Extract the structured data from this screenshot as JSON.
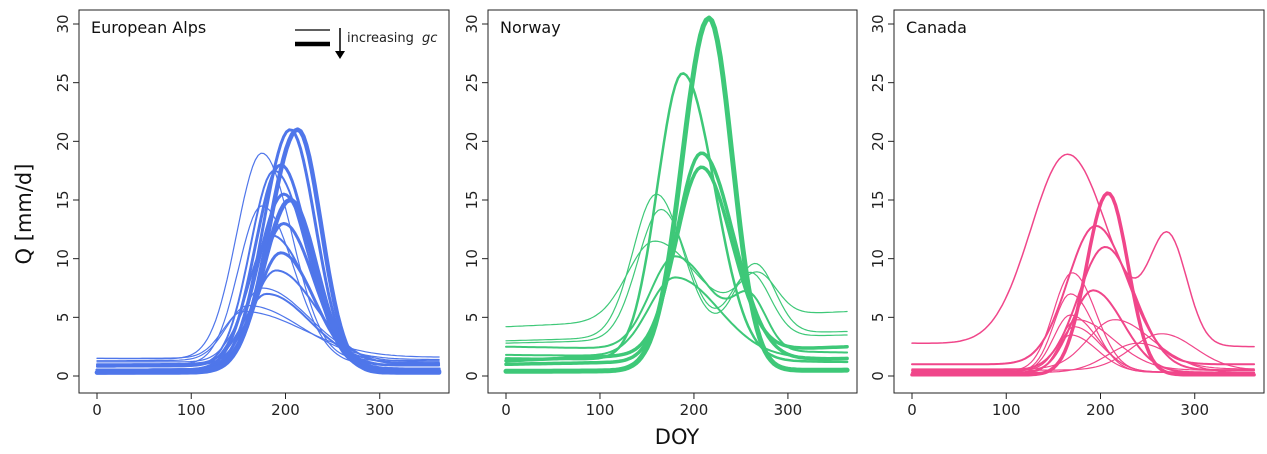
{
  "figure": {
    "ylabel": "Q [mm/d]",
    "xlabel": "DOY"
  },
  "legend": {
    "text": "increasing",
    "symbol": "gc"
  },
  "chart_data": [
    {
      "type": "line",
      "title": "European Alps",
      "color": "#4f76ea",
      "xlim": [
        0,
        365
      ],
      "ylim": [
        0,
        30
      ],
      "xticks": [
        0,
        100,
        200,
        300
      ],
      "yticks": [
        0,
        5,
        10,
        15,
        20,
        25,
        30
      ],
      "series": [
        {
          "width": 1.2,
          "peak": 19.0,
          "day": 175,
          "wr": 38,
          "wf": 45,
          "base0": 1.5,
          "base1": 1.3
        },
        {
          "width": 1.2,
          "peak": 7.5,
          "day": 175,
          "wr": 33,
          "wf": 70,
          "base0": 1.2,
          "base1": 1.2
        },
        {
          "width": 1.2,
          "peak": 6.0,
          "day": 160,
          "wr": 32,
          "wf": 80,
          "base0": 1.3,
          "base1": 1.4
        },
        {
          "width": 1.2,
          "peak": 5.5,
          "day": 155,
          "wr": 30,
          "wf": 90,
          "base0": 1.5,
          "base1": 1.6
        },
        {
          "width": 1.2,
          "peak": 14.5,
          "day": 175,
          "wr": 35,
          "wf": 48,
          "base0": 1.0,
          "base1": 1.0
        },
        {
          "width": 2.0,
          "peak": 17.5,
          "day": 188,
          "wr": 36,
          "wf": 48,
          "base0": 0.8,
          "base1": 0.9
        },
        {
          "width": 2.0,
          "peak": 12.0,
          "day": 185,
          "wr": 35,
          "wf": 55,
          "base0": 0.8,
          "base1": 0.9
        },
        {
          "width": 2.0,
          "peak": 9.0,
          "day": 190,
          "wr": 36,
          "wf": 60,
          "base0": 0.9,
          "base1": 1.0
        },
        {
          "width": 2.0,
          "peak": 7.0,
          "day": 180,
          "wr": 34,
          "wf": 65,
          "base0": 1.0,
          "base1": 1.1
        },
        {
          "width": 3.0,
          "peak": 21.0,
          "day": 205,
          "wr": 40,
          "wf": 38,
          "base0": 0.5,
          "base1": 0.5
        },
        {
          "width": 3.0,
          "peak": 18.0,
          "day": 195,
          "wr": 38,
          "wf": 42,
          "base0": 0.5,
          "base1": 0.6
        },
        {
          "width": 3.0,
          "peak": 15.5,
          "day": 198,
          "wr": 38,
          "wf": 44,
          "base0": 0.5,
          "base1": 0.6
        },
        {
          "width": 3.0,
          "peak": 13.0,
          "day": 198,
          "wr": 37,
          "wf": 46,
          "base0": 0.5,
          "base1": 0.6
        },
        {
          "width": 3.0,
          "peak": 10.5,
          "day": 195,
          "wr": 36,
          "wf": 50,
          "base0": 0.5,
          "base1": 0.6
        },
        {
          "width": 4.5,
          "peak": 21.0,
          "day": 213,
          "wr": 42,
          "wf": 35,
          "base0": 0.3,
          "base1": 0.3
        },
        {
          "width": 4.5,
          "peak": 15.0,
          "day": 205,
          "wr": 40,
          "wf": 40,
          "base0": 0.3,
          "base1": 0.4
        }
      ]
    },
    {
      "type": "line",
      "title": "Norway",
      "color": "#3ec878",
      "xlim": [
        0,
        365
      ],
      "ylim": [
        0,
        30
      ],
      "xticks": [
        0,
        100,
        200,
        300
      ],
      "yticks": [
        0,
        5,
        10,
        15,
        20,
        25,
        30
      ],
      "series": [
        {
          "width": 1.2,
          "peak": 15.5,
          "day": 160,
          "wr": 35,
          "wf": 40,
          "base0": 3.0,
          "base1": 3.8,
          "bump2": {
            "amp": 6,
            "day": 265,
            "w": 30
          }
        },
        {
          "width": 1.2,
          "peak": 14.2,
          "day": 165,
          "wr": 35,
          "wf": 40,
          "base0": 2.8,
          "base1": 3.5,
          "bump2": {
            "amp": 5.5,
            "day": 260,
            "w": 30
          }
        },
        {
          "width": 1.2,
          "peak": 11.5,
          "day": 158,
          "wr": 40,
          "wf": 60,
          "base0": 4.2,
          "base1": 5.5,
          "bump2": {
            "amp": 3.5,
            "day": 268,
            "w": 28
          }
        },
        {
          "width": 2.0,
          "peak": 10.2,
          "day": 180,
          "wr": 38,
          "wf": 55,
          "base0": 2.5,
          "base1": 2.0,
          "bump2": {
            "amp": 4,
            "day": 260,
            "w": 25
          }
        },
        {
          "width": 2.0,
          "peak": 8.4,
          "day": 180,
          "wr": 40,
          "wf": 65,
          "base0": 1.8,
          "base1": 1.5
        },
        {
          "width": 2.5,
          "peak": 25.8,
          "day": 188,
          "wr": 38,
          "wf": 48,
          "base0": 1.5,
          "base1": 1.2
        },
        {
          "width": 3.5,
          "peak": 19.0,
          "day": 208,
          "wr": 38,
          "wf": 48,
          "base0": 1.0,
          "base1": 1.5
        },
        {
          "width": 3.5,
          "peak": 17.8,
          "day": 208,
          "wr": 38,
          "wf": 45,
          "base0": 1.3,
          "base1": 2.5
        },
        {
          "width": 5.0,
          "peak": 30.5,
          "day": 216,
          "wr": 40,
          "wf": 35,
          "base0": 0.4,
          "base1": 0.5
        }
      ]
    },
    {
      "type": "line",
      "title": "Canada",
      "color": "#f0468a",
      "xlim": [
        0,
        365
      ],
      "ylim": [
        0,
        30
      ],
      "xticks": [
        0,
        100,
        200,
        300
      ],
      "yticks": [
        0,
        5,
        10,
        15,
        20,
        25,
        30
      ],
      "series": [
        {
          "width": 1.5,
          "peak": 18.9,
          "day": 165,
          "wr": 55,
          "wf": 60,
          "base0": 2.8,
          "base1": 2.5,
          "bump2": {
            "amp": 9,
            "day": 272,
            "w": 28
          }
        },
        {
          "width": 1.2,
          "peak": 8.8,
          "day": 170,
          "wr": 28,
          "wf": 35,
          "base0": 0.5,
          "base1": 0.3
        },
        {
          "width": 1.2,
          "peak": 7.0,
          "day": 168,
          "wr": 25,
          "wf": 35,
          "base0": 0.4,
          "base1": 0.3
        },
        {
          "width": 1.2,
          "peak": 5.2,
          "day": 168,
          "wr": 25,
          "wf": 40,
          "base0": 0.4,
          "base1": 0.3
        },
        {
          "width": 1.2,
          "peak": 4.8,
          "day": 175,
          "wr": 25,
          "wf": 55,
          "base0": 0.5,
          "base1": 0.5
        },
        {
          "width": 1.2,
          "peak": 4.2,
          "day": 172,
          "wr": 22,
          "wf": 40,
          "base0": 0.3,
          "base1": 0.3
        },
        {
          "width": 1.2,
          "peak": 3.5,
          "day": 168,
          "wr": 20,
          "wf": 40,
          "base0": 0.3,
          "base1": 0.3
        },
        {
          "width": 1.2,
          "peak": 4.8,
          "day": 215,
          "wr": 40,
          "wf": 55,
          "base0": 0.6,
          "base1": 0.6
        },
        {
          "width": 1.2,
          "peak": 3.6,
          "day": 265,
          "wr": 45,
          "wf": 50,
          "base0": 0.5,
          "base1": 0.5
        },
        {
          "width": 1.2,
          "peak": 2.8,
          "day": 240,
          "wr": 45,
          "wf": 50,
          "base0": 0.3,
          "base1": 0.3
        },
        {
          "width": 2.0,
          "peak": 7.3,
          "day": 192,
          "wr": 32,
          "wf": 45,
          "base0": 0.3,
          "base1": 0.3
        },
        {
          "width": 2.0,
          "peak": 12.8,
          "day": 195,
          "wr": 42,
          "wf": 48,
          "base0": 1.0,
          "base1": 1.0
        },
        {
          "width": 2.0,
          "peak": 11.0,
          "day": 205,
          "wr": 40,
          "wf": 45,
          "base0": 0.5,
          "base1": 0.5
        },
        {
          "width": 3.5,
          "peak": 15.6,
          "day": 208,
          "wr": 32,
          "wf": 30,
          "base0": 0.1,
          "base1": 0.1
        }
      ]
    }
  ]
}
